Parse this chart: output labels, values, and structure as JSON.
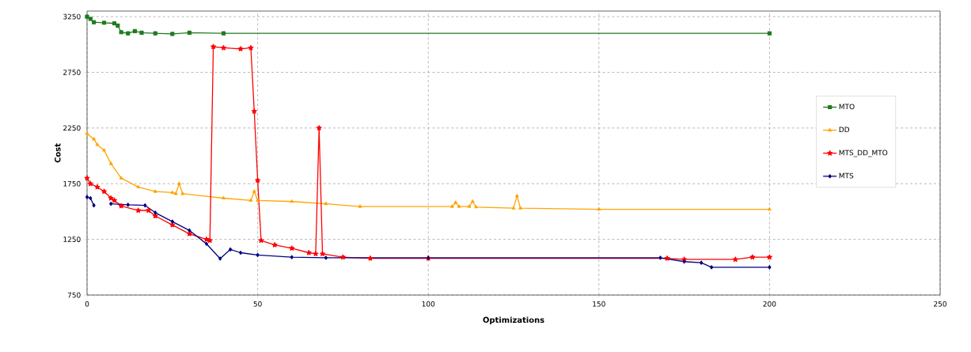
{
  "chart_data": {
    "type": "line",
    "xlabel": "Optimizations",
    "ylabel": "Cost",
    "xlim": [
      0,
      250
    ],
    "xticks": [
      0,
      50,
      100,
      150,
      200,
      250
    ],
    "ylim": [
      750,
      3300
    ],
    "yticks": [
      750,
      1250,
      1750,
      2250,
      2750,
      3250
    ],
    "grid": true,
    "legend": "right",
    "line_style": "solid",
    "series": [
      {
        "name": "MTO",
        "color": "#1e7b1e",
        "marker": "square",
        "x": [
          0,
          1,
          2,
          5,
          8,
          9,
          10,
          12,
          14,
          16,
          20,
          25,
          30,
          40,
          200
        ],
        "values": [
          3250,
          3230,
          3200,
          3195,
          3190,
          3170,
          3110,
          3100,
          3120,
          3105,
          3100,
          3095,
          3105,
          3100,
          3100
        ]
      },
      {
        "name": "DD",
        "color": "#ffa500",
        "marker": "triangle",
        "x": [
          0,
          2,
          3,
          5,
          7,
          10,
          15,
          20,
          25,
          26,
          27,
          28,
          40,
          48,
          49,
          50,
          60,
          70,
          80,
          107,
          108,
          109,
          112,
          113,
          114,
          125,
          126,
          127,
          150,
          200
        ],
        "values": [
          2200,
          2150,
          2100,
          2050,
          1930,
          1800,
          1720,
          1680,
          1670,
          1660,
          1750,
          1660,
          1620,
          1600,
          1680,
          1600,
          1590,
          1570,
          1545,
          1545,
          1580,
          1545,
          1545,
          1590,
          1540,
          1530,
          1640,
          1530,
          1520,
          1520
        ]
      },
      {
        "name": "MTS_DD_MTO",
        "color": "#ff0000",
        "marker": "star",
        "x": [
          0,
          1,
          3,
          5,
          7,
          8,
          10,
          15,
          18,
          20,
          25,
          30,
          35,
          36,
          37,
          40,
          45,
          48,
          49,
          50,
          51,
          55,
          60,
          65,
          67,
          68,
          69,
          75,
          83,
          100,
          170,
          175,
          190,
          195,
          200
        ],
        "values": [
          1800,
          1750,
          1720,
          1680,
          1620,
          1600,
          1550,
          1510,
          1510,
          1460,
          1380,
          1300,
          1250,
          1240,
          2980,
          2970,
          2960,
          2970,
          2400,
          1780,
          1240,
          1200,
          1170,
          1130,
          1120,
          2250,
          1120,
          1090,
          1080,
          1080,
          1080,
          1070,
          1070,
          1090,
          1090
        ]
      },
      {
        "name": "MTS",
        "color": "#000080",
        "marker": "diamond",
        "x": [
          0,
          1,
          2,
          3,
          6,
          7,
          12,
          17,
          20,
          25,
          30,
          35,
          39,
          42,
          45,
          50,
          60,
          70,
          100,
          168,
          175,
          180,
          183,
          200
        ],
        "values": [
          1630,
          1620,
          1555,
          null,
          null,
          1570,
          1560,
          1555,
          1490,
          1410,
          1330,
          1210,
          1077,
          1160,
          1130,
          1110,
          1090,
          1085,
          1085,
          1085,
          1050,
          1040,
          1000,
          1000
        ]
      }
    ]
  }
}
